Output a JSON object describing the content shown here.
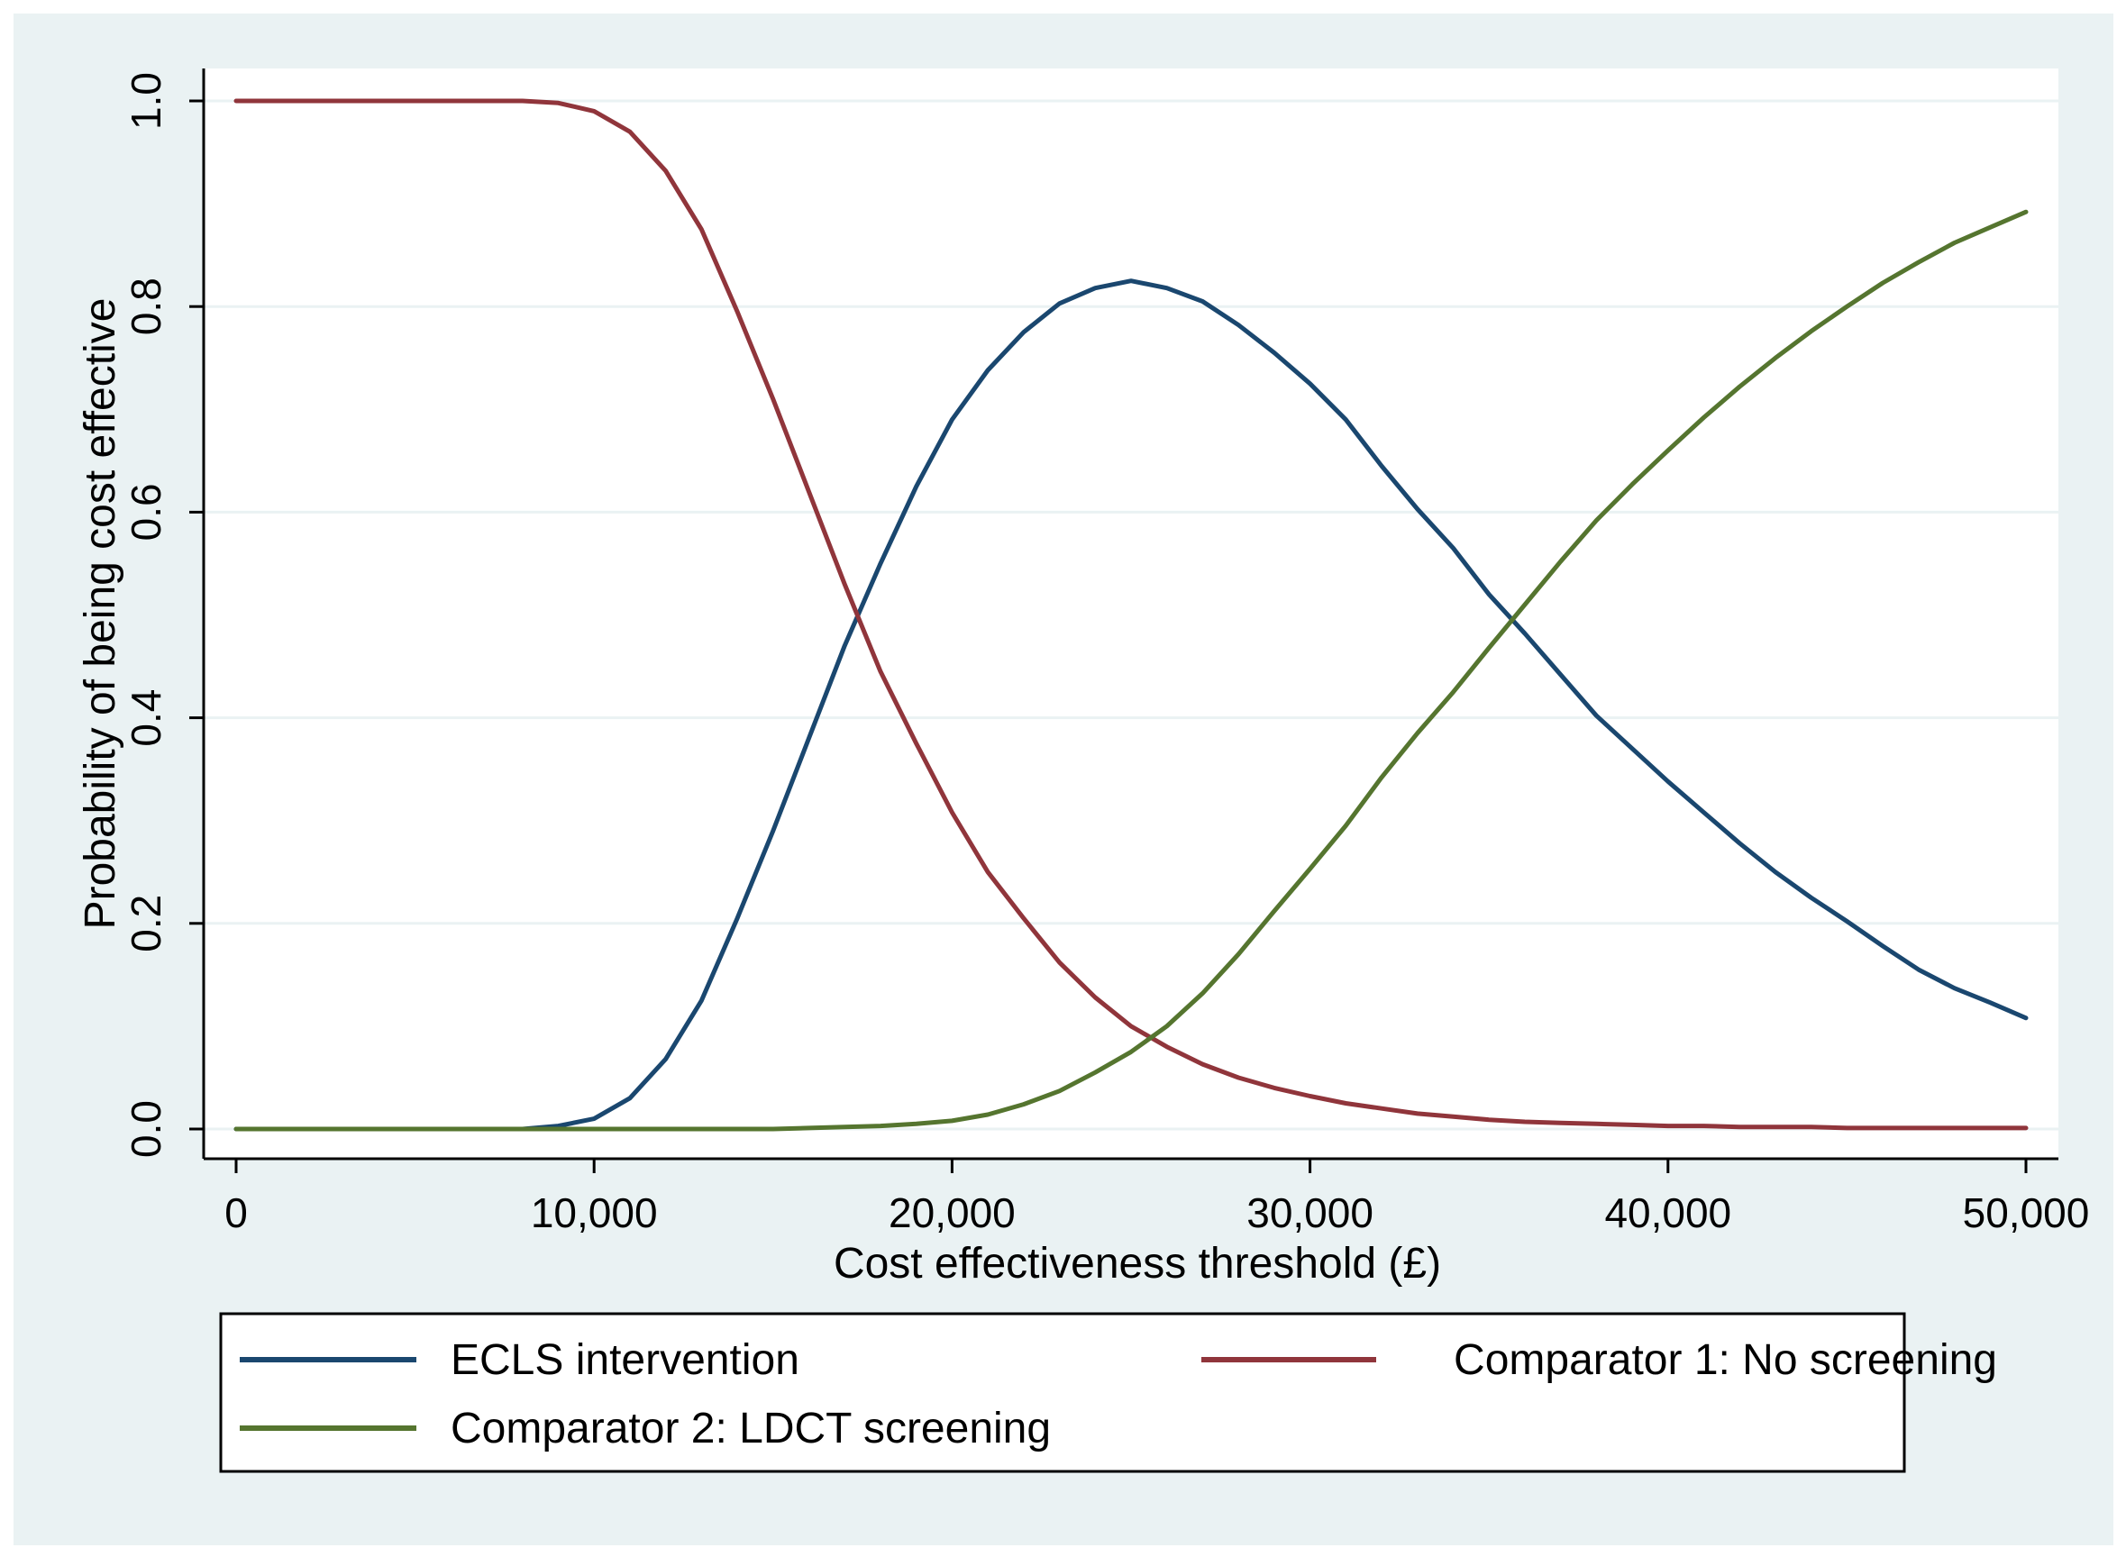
{
  "colors": {
    "outer_bg": "#eaf2f3",
    "plot_bg": "#ffffff",
    "grid": "#eaf2f3",
    "axis": "#000000",
    "legend_bg": "#ffffff"
  },
  "chart_data": {
    "type": "line",
    "title": "",
    "xlabel": "Cost effectiveness threshold (£)",
    "ylabel": "Probability of being cost effective",
    "xlim": [
      0,
      50000
    ],
    "ylim": [
      0,
      1
    ],
    "grid": true,
    "x_ticks": [
      0,
      10000,
      20000,
      30000,
      40000,
      50000
    ],
    "x_tick_labels": [
      "0",
      "10,000",
      "20,000",
      "30,000",
      "40,000",
      "50,000"
    ],
    "y_ticks": [
      0,
      0.2,
      0.4,
      0.6,
      0.8,
      1.0
    ],
    "y_tick_labels": [
      "0.0",
      "0.2",
      "0.4",
      "0.6",
      "0.8",
      "1.0"
    ],
    "legend_position": "bottom",
    "x": [
      0,
      1000,
      2000,
      3000,
      4000,
      5000,
      6000,
      7000,
      8000,
      9000,
      10000,
      11000,
      12000,
      13000,
      14000,
      15000,
      16000,
      17000,
      18000,
      19000,
      20000,
      21000,
      22000,
      23000,
      24000,
      25000,
      26000,
      27000,
      28000,
      29000,
      30000,
      31000,
      32000,
      33000,
      34000,
      35000,
      36000,
      37000,
      38000,
      39000,
      40000,
      41000,
      42000,
      43000,
      44000,
      45000,
      46000,
      47000,
      48000,
      49000,
      50000
    ],
    "series": [
      {
        "name": "ECLS intervention",
        "color": "#1a476f",
        "values": [
          0,
          0,
          0,
          0,
          0,
          0,
          0,
          0,
          0,
          0.003,
          0.01,
          0.03,
          0.068,
          0.125,
          0.205,
          0.29,
          0.38,
          0.47,
          0.55,
          0.625,
          0.69,
          0.738,
          0.775,
          0.803,
          0.818,
          0.825,
          0.818,
          0.805,
          0.782,
          0.755,
          0.725,
          0.69,
          0.645,
          0.603,
          0.565,
          0.52,
          0.482,
          0.442,
          0.402,
          0.37,
          0.338,
          0.308,
          0.278,
          0.25,
          0.225,
          0.202,
          0.178,
          0.155,
          0.137,
          0.123,
          0.108
        ]
      },
      {
        "name": "Comparator 1: No screening",
        "color": "#90353b",
        "values": [
          1,
          1,
          1,
          1,
          1,
          1,
          1,
          1,
          1,
          0.998,
          0.99,
          0.97,
          0.932,
          0.875,
          0.795,
          0.71,
          0.62,
          0.53,
          0.445,
          0.375,
          0.308,
          0.25,
          0.205,
          0.162,
          0.128,
          0.1,
          0.08,
          0.063,
          0.05,
          0.04,
          0.032,
          0.025,
          0.02,
          0.015,
          0.012,
          0.009,
          0.007,
          0.006,
          0.005,
          0.004,
          0.003,
          0.003,
          0.002,
          0.002,
          0.002,
          0.001,
          0.001,
          0.001,
          0.001,
          0.001,
          0.001
        ]
      },
      {
        "name": "Comparator 2: LDCT screening",
        "color": "#55752f",
        "values": [
          0,
          0,
          0,
          0,
          0,
          0,
          0,
          0,
          0,
          0,
          0,
          0,
          0,
          0,
          0,
          0,
          0.001,
          0.002,
          0.003,
          0.005,
          0.008,
          0.014,
          0.024,
          0.037,
          0.055,
          0.075,
          0.1,
          0.132,
          0.17,
          0.212,
          0.253,
          0.295,
          0.342,
          0.385,
          0.425,
          0.468,
          0.51,
          0.552,
          0.592,
          0.627,
          0.66,
          0.692,
          0.722,
          0.75,
          0.776,
          0.8,
          0.823,
          0.843,
          0.862,
          0.877,
          0.892
        ]
      }
    ]
  }
}
